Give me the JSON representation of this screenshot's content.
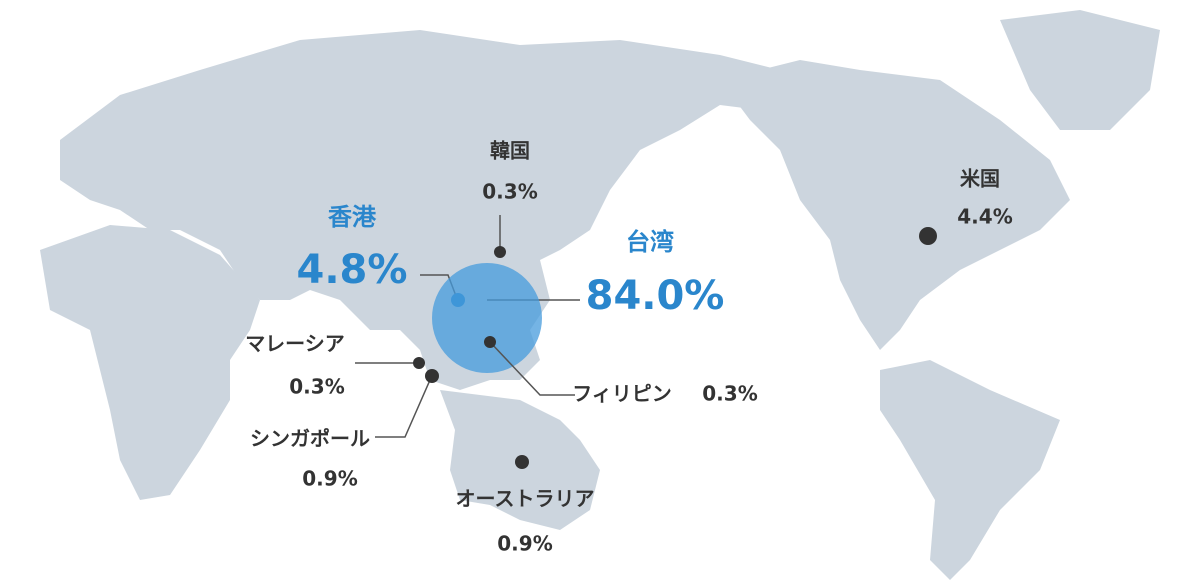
{
  "regions": [
    {
      "name": "香港",
      "value": 4.8,
      "value_label": "4.8%"
    },
    {
      "name": "台湾",
      "value": 84.0,
      "value_label": "84.0%"
    },
    {
      "name": "韓国",
      "value": 0.3,
      "value_label": "0.3%"
    },
    {
      "name": "米国",
      "value": 4.4,
      "value_label": "4.4%"
    },
    {
      "name": "マレーシア",
      "value": 0.3,
      "value_label": "0.3%"
    },
    {
      "name": "シンガポール",
      "value": 0.9,
      "value_label": "0.9%"
    },
    {
      "name": "フィリピン",
      "value": 0.3,
      "value_label": "0.3%"
    },
    {
      "name": "オーストラリア",
      "value": 0.9,
      "value_label": "0.9%"
    }
  ]
}
